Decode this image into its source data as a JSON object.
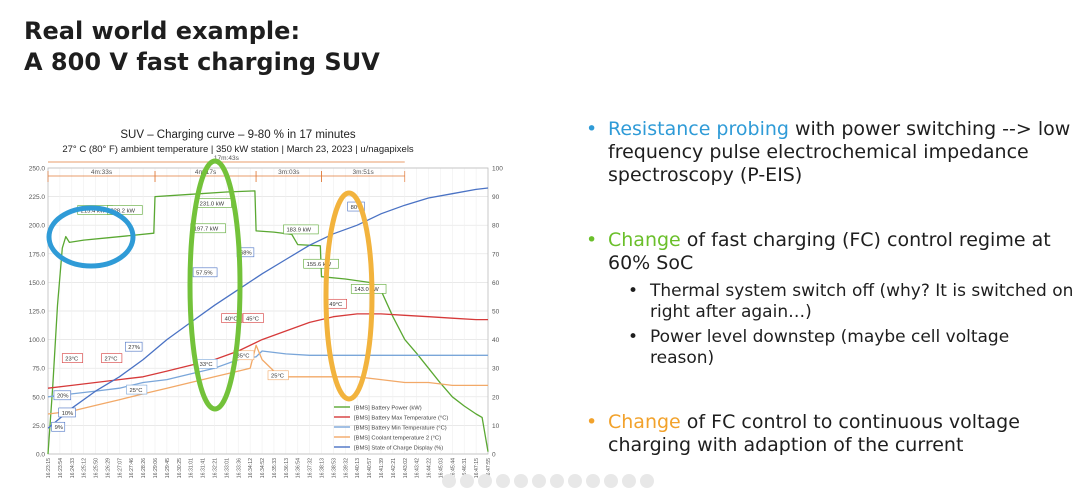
{
  "slide": {
    "title_line1": "Real world example:",
    "title_line2": "A 800 V fast charging SUV"
  },
  "bullets": [
    {
      "highlight": "Resistance probing",
      "rest": " with power switching --> low frequency pulse electrochemical impedance spectroscopy (P-EIS)",
      "color": "#2f9bd7"
    },
    {
      "highlight": "Change",
      "rest": " of fast charging (FC) control regime at 60% SoC",
      "color": "#6abf2a",
      "subs": [
        "Thermal system switch off (why? It is switched on right after again…)",
        "Power level downstep (maybe cell voltage reason)"
      ]
    },
    {
      "highlight": "Change",
      "rest": " of FC control to continuous voltage charging with adaption of the current",
      "color": "#f2a22b"
    }
  ],
  "chart_data": {
    "type": "line",
    "title": "SUV – Charging curve – 9-80 % in 17 minutes",
    "subtitle": "27° C (80° F) ambient temperature | 350 kW station | March 23, 2023 | u/nagapixels",
    "ylim_left": [
      0,
      250
    ],
    "ylim_right": [
      0,
      100
    ],
    "yticks_left": [
      "0.0",
      "25.0",
      "50.0",
      "75.0",
      "100.0",
      "125.0",
      "150.0",
      "175.0",
      "200.0",
      "225.0",
      "250.0"
    ],
    "yticks_right": [
      "0",
      "10",
      "20",
      "30",
      "40",
      "50",
      "60",
      "70",
      "80",
      "90",
      "100"
    ],
    "x_ticks": [
      "16:23:15",
      "16:23:54",
      "16:24:33",
      "16:25:12",
      "16:25:50",
      "16:26:29",
      "16:27:07",
      "16:27:46",
      "16:28:26",
      "16:29:06",
      "16:29:45",
      "16:30:25",
      "16:31:01",
      "16:31:41",
      "16:32:21",
      "16:33:01",
      "16:33:36",
      "16:34:12",
      "16:34:52",
      "16:35:33",
      "16:36:13",
      "16:36:54",
      "16:37:32",
      "16:38:13",
      "16:38:53",
      "16:39:32",
      "16:40:13",
      "16:40:57",
      "16:41:39",
      "16:42:21",
      "16:43:02",
      "16:43:42",
      "16:44:22",
      "16:45:03",
      "16:45:44",
      "16:46:31",
      "16:47:15",
      "16:47:55"
    ],
    "durations": [
      {
        "label": "4m:33s",
        "from": 0.0,
        "to": 9.0
      },
      {
        "label": "4m:17s",
        "from": 9.0,
        "to": 17.5
      },
      {
        "label": "3m:03s",
        "from": 17.5,
        "to": 23.0
      },
      {
        "label": "3m:51s",
        "from": 23.0,
        "to": 30.0
      }
    ],
    "total_duration": {
      "label": "17m:43s",
      "from": 0.0,
      "to": 30.0
    },
    "series": [
      {
        "name": "[BMS] Battery Power (kW)",
        "color": "#5aa832",
        "axis": "left",
        "x": [
          0,
          0.4,
          0.8,
          1.2,
          1.5,
          1.8,
          3,
          5,
          7,
          8.9,
          9.0,
          12,
          15,
          17.4,
          17.5,
          19,
          20.5,
          21,
          22.9,
          23.0,
          25,
          27,
          28,
          29,
          30,
          31,
          32,
          33,
          34,
          35,
          36,
          36.5,
          37
        ],
        "y": [
          0,
          60,
          130,
          180,
          190,
          185,
          187,
          189,
          191,
          193,
          225,
          227,
          229,
          230,
          195,
          194,
          192,
          183,
          182,
          155,
          153,
          150,
          143,
          120,
          100,
          88,
          75,
          62,
          50,
          42,
          35,
          32,
          2
        ]
      },
      {
        "name": "[BMS] Battery Max Temperature (°C)",
        "color": "#d63a3a",
        "axis": "right",
        "x": [
          0,
          2,
          4,
          6,
          8,
          10,
          12,
          14,
          16,
          18,
          20,
          22,
          24,
          26,
          28,
          30,
          32,
          34,
          36,
          37
        ],
        "y": [
          23,
          24,
          25,
          26,
          27,
          29,
          31,
          33,
          36,
          40,
          43,
          46,
          48,
          49,
          49,
          48.5,
          48,
          47.5,
          47,
          47
        ]
      },
      {
        "name": "[BMS] Battery Min Temperature (°C)",
        "color": "#7aa6d9",
        "axis": "right",
        "x": [
          0,
          2,
          4,
          6,
          8,
          10,
          12,
          14,
          16,
          17.5,
          18,
          20,
          22,
          24,
          26,
          28,
          30,
          32,
          34,
          36,
          37
        ],
        "y": [
          20,
          21,
          22,
          23,
          25,
          26,
          28,
          30,
          33,
          34,
          36,
          35,
          34.5,
          34.5,
          34.5,
          34.5,
          34.5,
          34.5,
          34.5,
          34.5,
          34.5
        ]
      },
      {
        "name": "[BMS] Coolant temperature 2 (°C)",
        "color": "#f2a968",
        "axis": "right",
        "x": [
          0,
          2,
          4,
          6,
          8,
          10,
          12,
          14,
          16,
          17,
          17.5,
          18,
          19,
          20,
          22,
          24,
          26,
          28,
          30,
          32,
          34,
          36,
          37
        ],
        "y": [
          14,
          15,
          17,
          19,
          21,
          23,
          25,
          27,
          29,
          30,
          38,
          33,
          29,
          27,
          27,
          27,
          27,
          26,
          25,
          25,
          24,
          24,
          24
        ]
      },
      {
        "name": "[BMS] State of Charge Display (%)",
        "color": "#4a72c4",
        "axis": "right",
        "x": [
          0,
          2,
          4,
          6,
          8,
          10,
          12,
          14,
          16,
          18,
          20,
          22,
          24,
          26,
          28,
          30,
          32,
          34,
          36,
          37
        ],
        "y": [
          9,
          16,
          22,
          27,
          33,
          40,
          46,
          52,
          57.5,
          63,
          68,
          73,
          77,
          80,
          84,
          87,
          89.5,
          91,
          92.5,
          93
        ]
      }
    ],
    "annotations": [
      {
        "text": "9%",
        "x": 0.3,
        "y": 9,
        "axis": "right",
        "color": "#4a72c4"
      },
      {
        "text": "10%",
        "x": 0.9,
        "y": 14,
        "axis": "right",
        "color": "#4a72c4"
      },
      {
        "text": "20%",
        "x": 0.5,
        "y": 20,
        "axis": "right",
        "color": "#4a72c4"
      },
      {
        "text": "23°C",
        "x": 1.2,
        "y": 33,
        "axis": "right",
        "color": "#d63a3a"
      },
      {
        "text": "27°C",
        "x": 4.5,
        "y": 33,
        "axis": "right",
        "color": "#d63a3a"
      },
      {
        "text": "27%",
        "x": 6.5,
        "y": 37,
        "axis": "right",
        "color": "#4a72c4"
      },
      {
        "text": "25°C",
        "x": 6.6,
        "y": 22,
        "axis": "right",
        "color": "#7aa6d9"
      },
      {
        "text": "33°C",
        "x": 12.5,
        "y": 31,
        "axis": "right",
        "color": "#7aa6d9"
      },
      {
        "text": "40°C",
        "x": 14.6,
        "y": 47,
        "axis": "right",
        "color": "#d63a3a"
      },
      {
        "text": "45°C",
        "x": 16.4,
        "y": 47,
        "axis": "right",
        "color": "#d63a3a"
      },
      {
        "text": "35°C",
        "x": 15.6,
        "y": 34,
        "axis": "right",
        "color": "#f2a968"
      },
      {
        "text": "25°C",
        "x": 18.5,
        "y": 27,
        "axis": "right",
        "color": "#f2a968"
      },
      {
        "text": "57.5%",
        "x": 12.2,
        "y": 63,
        "axis": "right",
        "color": "#4a72c4"
      },
      {
        "text": "68%",
        "x": 15.9,
        "y": 70,
        "axis": "right",
        "color": "#4a72c4"
      },
      {
        "text": "80%",
        "x": 25.2,
        "y": 86,
        "axis": "right",
        "color": "#4a72c4"
      },
      {
        "text": "49°C",
        "x": 23.4,
        "y": 52,
        "axis": "right",
        "color": "#d63a3a"
      },
      {
        "text": "215.4 kW",
        "x": 2.5,
        "y": 212,
        "axis": "left",
        "color": "#5aa832"
      },
      {
        "text": "228.2 kW",
        "x": 5.0,
        "y": 212,
        "axis": "left",
        "color": "#5aa832"
      },
      {
        "text": "231.0 kW",
        "x": 12.5,
        "y": 218,
        "axis": "left",
        "color": "#5aa832"
      },
      {
        "text": "197.7 kW",
        "x": 12.0,
        "y": 196,
        "axis": "left",
        "color": "#5aa832"
      },
      {
        "text": "183.9 kW",
        "x": 19.8,
        "y": 195,
        "axis": "left",
        "color": "#5aa832"
      },
      {
        "text": "155.6 kW",
        "x": 21.5,
        "y": 165,
        "axis": "left",
        "color": "#5aa832"
      },
      {
        "text": "143.0 kW",
        "x": 25.5,
        "y": 143,
        "axis": "left",
        "color": "#5aa832"
      }
    ],
    "legend": "bottom-right",
    "grid": true
  }
}
